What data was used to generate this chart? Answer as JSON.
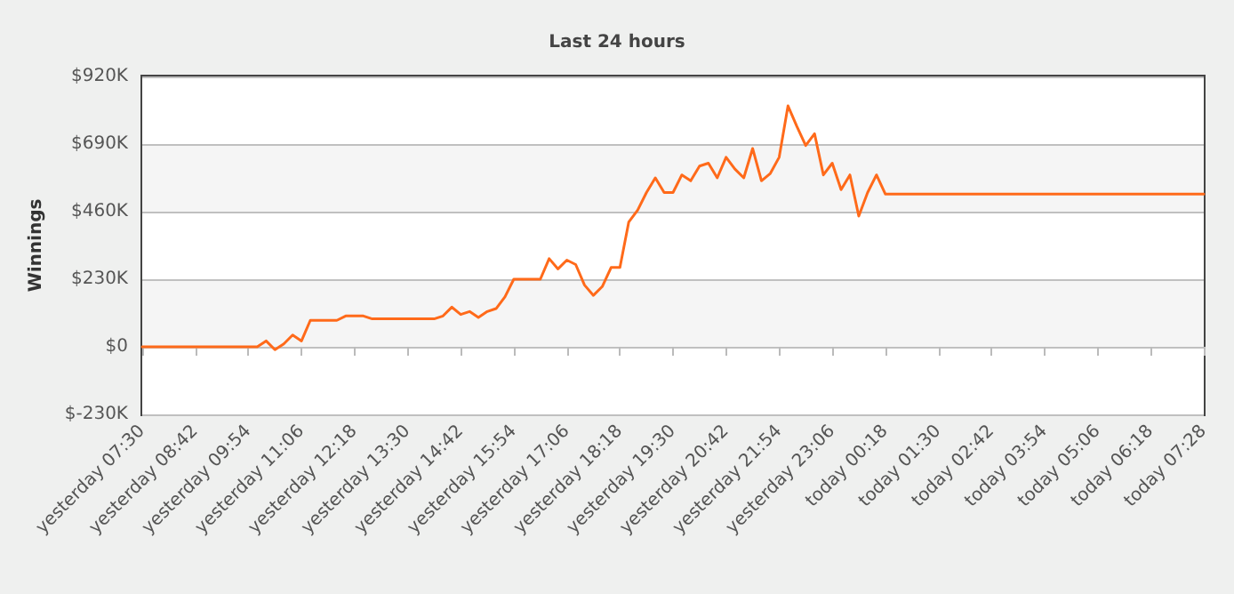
{
  "chart_data": {
    "type": "line",
    "title": "Last 24 hours",
    "ylabel": "Winnings",
    "categories": [
      "yesterday 07:30",
      null,
      null,
      null,
      null,
      null,
      "yesterday 08:42",
      null,
      null,
      null,
      null,
      null,
      "yesterday 09:54",
      null,
      null,
      null,
      null,
      null,
      "yesterday 11:06",
      null,
      null,
      null,
      null,
      null,
      "yesterday 12:18",
      null,
      null,
      null,
      null,
      null,
      "yesterday 13:30",
      null,
      null,
      null,
      null,
      null,
      "yesterday 14:42",
      null,
      null,
      null,
      null,
      null,
      "yesterday 15:54",
      null,
      null,
      null,
      null,
      null,
      "yesterday 17:06",
      null,
      null,
      null,
      null,
      null,
      "yesterday 18:18",
      null,
      null,
      null,
      null,
      null,
      "yesterday 19:30",
      null,
      null,
      null,
      null,
      null,
      "yesterday 20:42",
      null,
      null,
      null,
      null,
      null,
      "yesterday 21:54",
      null,
      null,
      null,
      null,
      null,
      "yesterday 23:06",
      null,
      null,
      null,
      null,
      null,
      "today 00:18",
      null,
      null,
      null,
      null,
      null,
      "today 01:30",
      null,
      null,
      null,
      null,
      null,
      "today 02:42",
      null,
      null,
      null,
      null,
      null,
      "today 03:54",
      null,
      null,
      null,
      null,
      null,
      "today 05:06",
      null,
      null,
      null,
      null,
      null,
      "today 06:18",
      null,
      null,
      null,
      null,
      null,
      "today 07:28"
    ],
    "series": [
      {
        "color": "#ff6a1a",
        "values": [
          0,
          0,
          0,
          0,
          0,
          0,
          0,
          0,
          0,
          0,
          0,
          0,
          0,
          0,
          20,
          -10,
          10,
          40,
          20,
          90,
          90,
          90,
          90,
          105,
          105,
          105,
          95,
          95,
          95,
          95,
          95,
          95,
          95,
          95,
          105,
          135,
          110,
          120,
          100,
          120,
          130,
          170,
          230,
          230,
          230,
          230,
          300,
          265,
          295,
          280,
          210,
          175,
          205,
          270,
          270,
          425,
          465,
          525,
          575,
          525,
          525,
          585,
          565,
          615,
          625,
          575,
          645,
          605,
          575,
          675,
          565,
          590,
          645,
          820,
          750,
          685,
          725,
          585,
          625,
          535,
          585,
          445,
          525,
          585,
          520,
          520,
          520,
          520,
          520,
          520,
          520,
          520,
          520,
          520,
          520,
          520,
          520,
          520,
          520,
          520,
          520,
          520,
          520,
          520,
          520,
          520,
          520,
          520,
          520,
          520,
          520,
          520,
          520,
          520,
          520,
          520,
          520,
          520,
          520,
          520,
          520
        ]
      }
    ],
    "ylim": [
      -230,
      920
    ],
    "yticks": [
      {
        "value": -230,
        "label": "$-230K"
      },
      {
        "value": 0,
        "label": "$0"
      },
      {
        "value": 230,
        "label": "$230K"
      },
      {
        "value": 460,
        "label": "$460K"
      },
      {
        "value": 690,
        "label": "$690K"
      },
      {
        "value": 920,
        "label": "$920K"
      }
    ],
    "grid": "y",
    "marker": "none",
    "line_style": "solid"
  }
}
